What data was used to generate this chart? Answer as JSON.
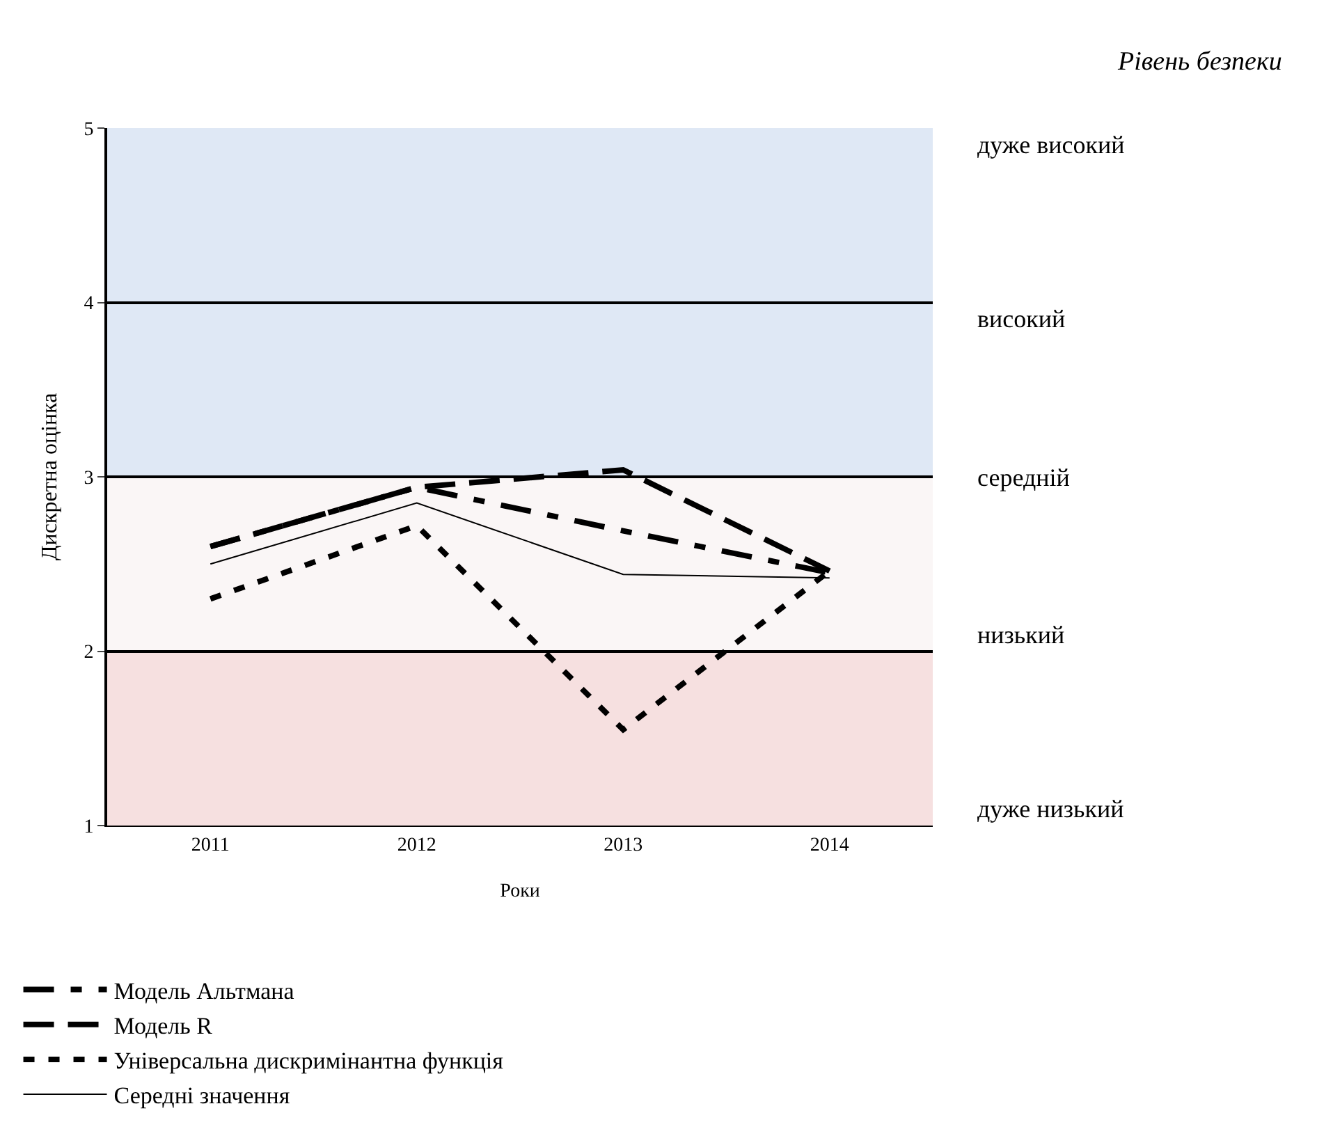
{
  "chart_data": {
    "type": "line",
    "xlabel": "Роки",
    "ylabel": "Дискретна оцінка",
    "annotations": [
      "Рівень безпеки",
      "дуже високий",
      "високий",
      "середній",
      "низький",
      "дуже низький"
    ],
    "categories": [
      "2011",
      "2012",
      "2013",
      "2014"
    ],
    "series": [
      {
        "name": "Модель Альтмана",
        "color": "#000000",
        "line_style": "dashdot",
        "values": [
          2.6,
          2.94,
          2.69,
          2.45
        ]
      },
      {
        "name": "Модель R",
        "color": "#000000",
        "line_style": "dashed",
        "values": [
          2.6,
          2.94,
          3.04,
          2.46
        ]
      },
      {
        "name": "Універсальна дискримінантна функція",
        "color": "#000000",
        "line_style": "dotted",
        "values": [
          2.3,
          2.72,
          1.55,
          2.46
        ]
      },
      {
        "name": "Середні значення",
        "color": "#000000",
        "line_style": "solid",
        "values": [
          2.5,
          2.85,
          2.44,
          2.42
        ]
      }
    ],
    "ylim": [
      1,
      5
    ],
    "yticks": [
      1,
      2,
      3,
      4,
      5
    ],
    "bands": [
      {
        "axis": "y",
        "from": 1,
        "to": 2,
        "color": "#f6e0e0"
      },
      {
        "axis": "y",
        "from": 2,
        "to": 3,
        "color": "#faf6f6"
      },
      {
        "axis": "y",
        "from": 3,
        "to": 5,
        "color": "#dfe8f5"
      }
    ],
    "grid": "y",
    "legend": "bottom",
    "marker": "none"
  }
}
